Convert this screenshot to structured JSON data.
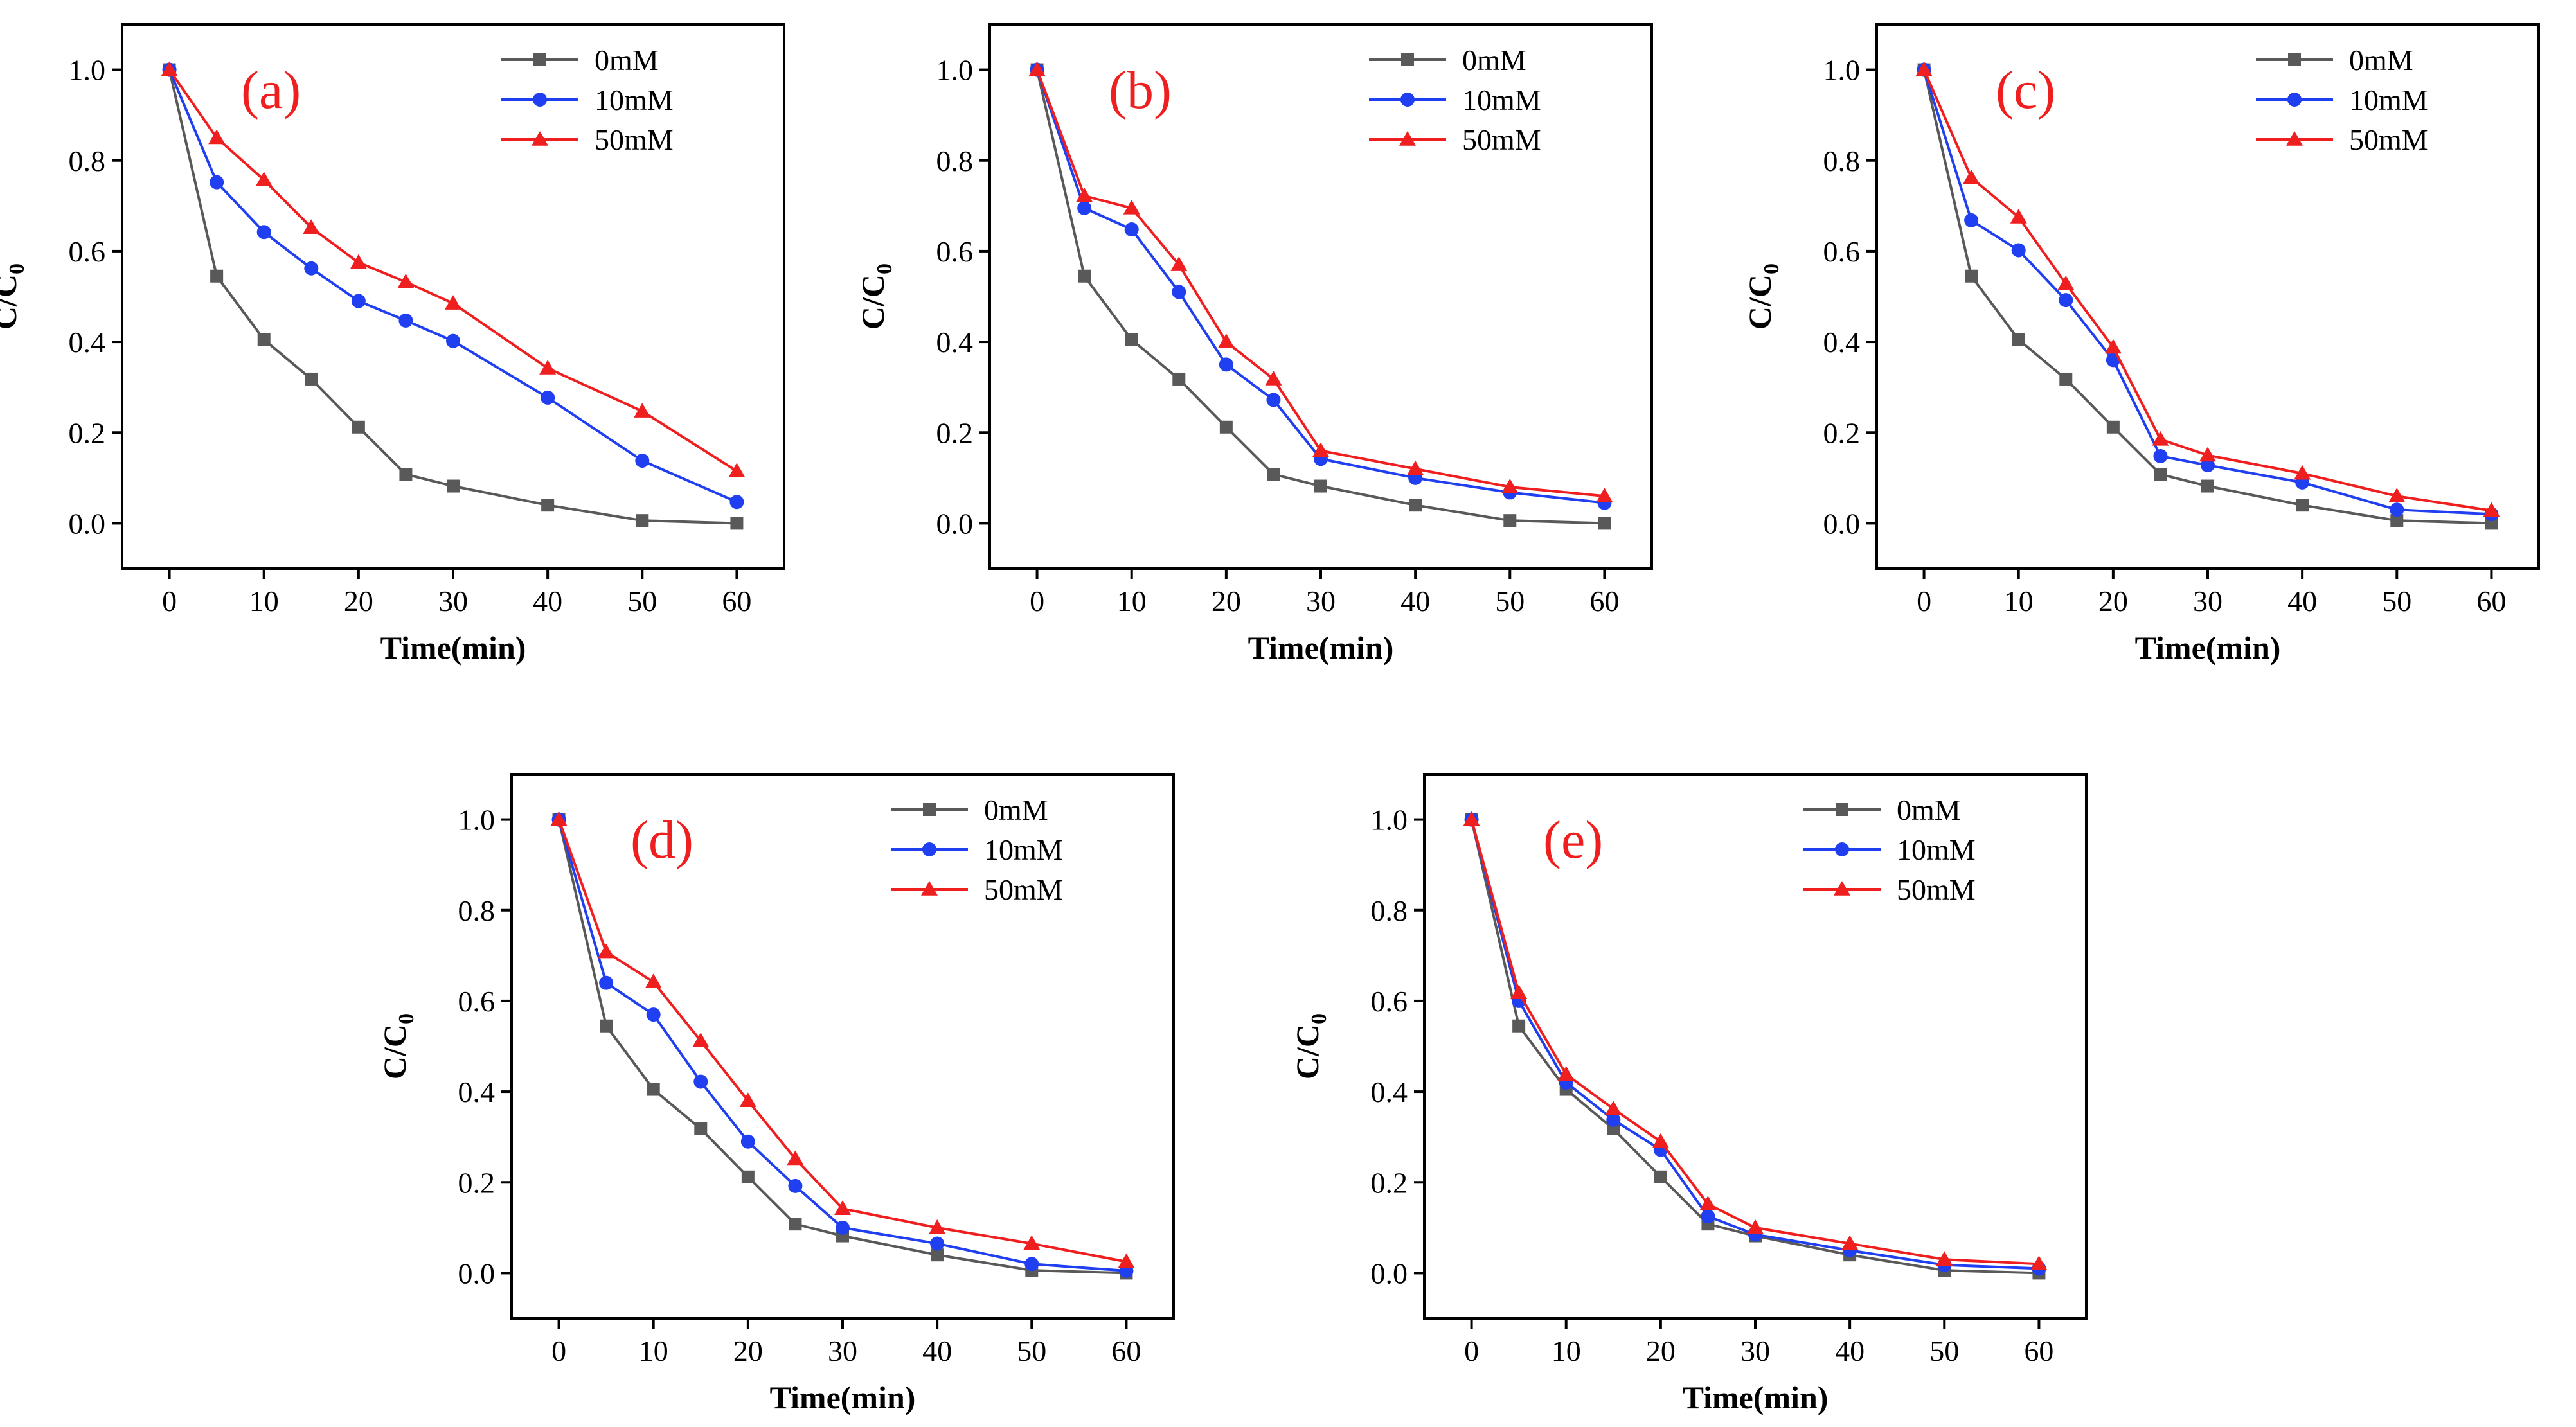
{
  "chart_data": [
    {
      "type": "line",
      "panel_label": "(a)",
      "xlabel": "Time(min)",
      "ylabel": "C/C",
      "ylabel_sub": "0",
      "xlim": [
        -5,
        65
      ],
      "ylim": [
        -0.1,
        1.1
      ],
      "x_ticks": [
        0,
        10,
        20,
        30,
        40,
        50,
        60
      ],
      "y_ticks": [
        "0.0",
        "0.2",
        "0.4",
        "0.6",
        "0.8",
        "1.0"
      ],
      "legend_position": "top-right",
      "x": [
        0,
        5,
        10,
        15,
        20,
        25,
        30,
        40,
        50,
        60
      ],
      "series": [
        {
          "name": "0mM",
          "color": "#595959",
          "marker": "square",
          "values": [
            1.0,
            0.545,
            0.405,
            0.318,
            0.212,
            0.108,
            0.082,
            0.04,
            0.006,
            0.0
          ]
        },
        {
          "name": "10mM",
          "color": "#1f3ff0",
          "marker": "circle",
          "values": [
            1.0,
            0.752,
            0.642,
            0.562,
            0.49,
            0.447,
            0.402,
            0.277,
            0.138,
            0.047
          ]
        },
        {
          "name": "50mM",
          "color": "#f01f1f",
          "marker": "triangle",
          "values": [
            1.0,
            0.85,
            0.757,
            0.652,
            0.575,
            0.532,
            0.485,
            0.342,
            0.247,
            0.115
          ]
        }
      ]
    },
    {
      "type": "line",
      "panel_label": "(b)",
      "xlabel": "Time(min)",
      "ylabel": "C/C",
      "ylabel_sub": "0",
      "xlim": [
        -5,
        65
      ],
      "ylim": [
        -0.1,
        1.1
      ],
      "x_ticks": [
        0,
        10,
        20,
        30,
        40,
        50,
        60
      ],
      "y_ticks": [
        "0.0",
        "0.2",
        "0.4",
        "0.6",
        "0.8",
        "1.0"
      ],
      "legend_position": "top-right",
      "x": [
        0,
        5,
        10,
        15,
        20,
        25,
        30,
        40,
        50,
        60
      ],
      "series": [
        {
          "name": "0mM",
          "color": "#595959",
          "marker": "square",
          "values": [
            1.0,
            0.545,
            0.405,
            0.318,
            0.212,
            0.108,
            0.082,
            0.04,
            0.006,
            0.0
          ]
        },
        {
          "name": "10mM",
          "color": "#1f3ff0",
          "marker": "circle",
          "values": [
            1.0,
            0.695,
            0.648,
            0.51,
            0.35,
            0.272,
            0.142,
            0.1,
            0.068,
            0.045
          ]
        },
        {
          "name": "50mM",
          "color": "#f01f1f",
          "marker": "triangle",
          "values": [
            1.0,
            0.722,
            0.695,
            0.57,
            0.4,
            0.318,
            0.16,
            0.12,
            0.08,
            0.06
          ]
        }
      ]
    },
    {
      "type": "line",
      "panel_label": "(c)",
      "xlabel": "Time(min)",
      "ylabel": "C/C",
      "ylabel_sub": "0",
      "xlim": [
        -5,
        65
      ],
      "ylim": [
        -0.1,
        1.1
      ],
      "x_ticks": [
        0,
        10,
        20,
        30,
        40,
        50,
        60
      ],
      "y_ticks": [
        "0.0",
        "0.2",
        "0.4",
        "0.6",
        "0.8",
        "1.0"
      ],
      "legend_position": "top-right",
      "x": [
        0,
        5,
        10,
        15,
        20,
        25,
        30,
        40,
        50,
        60
      ],
      "series": [
        {
          "name": "0mM",
          "color": "#595959",
          "marker": "square",
          "values": [
            1.0,
            0.545,
            0.405,
            0.318,
            0.212,
            0.108,
            0.082,
            0.04,
            0.006,
            0.0
          ]
        },
        {
          "name": "10mM",
          "color": "#1f3ff0",
          "marker": "circle",
          "values": [
            1.0,
            0.668,
            0.602,
            0.492,
            0.36,
            0.148,
            0.128,
            0.09,
            0.03,
            0.02
          ]
        },
        {
          "name": "50mM",
          "color": "#f01f1f",
          "marker": "triangle",
          "values": [
            1.0,
            0.762,
            0.675,
            0.528,
            0.388,
            0.185,
            0.15,
            0.11,
            0.06,
            0.028
          ]
        }
      ]
    },
    {
      "type": "line",
      "panel_label": "(d)",
      "xlabel": "Time(min)",
      "ylabel": "C/C",
      "ylabel_sub": "0",
      "xlim": [
        -5,
        65
      ],
      "ylim": [
        -0.1,
        1.1
      ],
      "x_ticks": [
        0,
        10,
        20,
        30,
        40,
        50,
        60
      ],
      "y_ticks": [
        "0.0",
        "0.2",
        "0.4",
        "0.6",
        "0.8",
        "1.0"
      ],
      "legend_position": "top-right",
      "x": [
        0,
        5,
        10,
        15,
        20,
        25,
        30,
        40,
        50,
        60
      ],
      "series": [
        {
          "name": "0mM",
          "color": "#595959",
          "marker": "square",
          "values": [
            1.0,
            0.545,
            0.405,
            0.318,
            0.212,
            0.108,
            0.082,
            0.04,
            0.006,
            0.0
          ]
        },
        {
          "name": "10mM",
          "color": "#1f3ff0",
          "marker": "circle",
          "values": [
            1.0,
            0.64,
            0.57,
            0.422,
            0.29,
            0.192,
            0.1,
            0.065,
            0.02,
            0.005
          ]
        },
        {
          "name": "50mM",
          "color": "#f01f1f",
          "marker": "triangle",
          "values": [
            1.0,
            0.708,
            0.642,
            0.512,
            0.38,
            0.252,
            0.142,
            0.1,
            0.065,
            0.025
          ]
        }
      ]
    },
    {
      "type": "line",
      "panel_label": "(e)",
      "xlabel": "Time(min)",
      "ylabel": "C/C",
      "ylabel_sub": "0",
      "xlim": [
        -5,
        65
      ],
      "ylim": [
        -0.1,
        1.1
      ],
      "x_ticks": [
        0,
        10,
        20,
        30,
        40,
        50,
        60
      ],
      "y_ticks": [
        "0.0",
        "0.2",
        "0.4",
        "0.6",
        "0.8",
        "1.0"
      ],
      "legend_position": "top-right",
      "x": [
        0,
        5,
        10,
        15,
        20,
        25,
        30,
        40,
        50,
        60
      ],
      "series": [
        {
          "name": "0mM",
          "color": "#595959",
          "marker": "square",
          "values": [
            1.0,
            0.545,
            0.405,
            0.318,
            0.212,
            0.108,
            0.082,
            0.04,
            0.006,
            0.0
          ]
        },
        {
          "name": "10mM",
          "color": "#1f3ff0",
          "marker": "circle",
          "values": [
            1.0,
            0.6,
            0.42,
            0.338,
            0.272,
            0.125,
            0.085,
            0.05,
            0.018,
            0.01
          ]
        },
        {
          "name": "50mM",
          "color": "#f01f1f",
          "marker": "triangle",
          "values": [
            1.0,
            0.618,
            0.438,
            0.362,
            0.29,
            0.152,
            0.1,
            0.065,
            0.03,
            0.02
          ]
        }
      ]
    }
  ]
}
